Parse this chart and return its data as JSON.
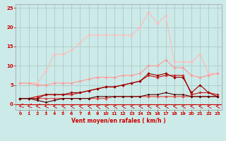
{
  "x": [
    0,
    1,
    2,
    3,
    4,
    5,
    6,
    7,
    8,
    9,
    10,
    11,
    12,
    13,
    14,
    15,
    16,
    17,
    18,
    19,
    20,
    21,
    22,
    23
  ],
  "series": [
    {
      "name": "line_flat_red",
      "color": "#dd4444",
      "linewidth": 0.8,
      "marker": "D",
      "markersize": 1.8,
      "values": [
        1.5,
        1.5,
        1.5,
        1.5,
        1.5,
        1.5,
        1.5,
        1.5,
        1.5,
        1.5,
        1.5,
        2.0,
        2.0,
        2.0,
        2.0,
        2.0,
        2.0,
        2.0,
        2.0,
        2.0,
        2.0,
        2.0,
        2.0,
        2.0
      ]
    },
    {
      "name": "line_mid_red",
      "color": "#cc2222",
      "linewidth": 0.9,
      "marker": "D",
      "markersize": 1.8,
      "values": [
        1.5,
        1.5,
        2.0,
        2.5,
        2.5,
        2.5,
        2.5,
        3.0,
        3.5,
        4.0,
        4.5,
        4.5,
        5.0,
        5.5,
        6.0,
        7.5,
        7.0,
        7.5,
        7.5,
        7.5,
        2.5,
        3.0,
        3.0,
        2.5
      ]
    },
    {
      "name": "line_dark_red",
      "color": "#990000",
      "linewidth": 0.8,
      "marker": "D",
      "markersize": 1.8,
      "values": [
        1.5,
        1.5,
        1.5,
        2.5,
        2.5,
        2.5,
        3.0,
        3.0,
        3.5,
        4.0,
        4.5,
        4.5,
        5.0,
        5.5,
        6.0,
        8.0,
        7.5,
        8.0,
        7.0,
        7.0,
        3.0,
        5.0,
        3.0,
        2.0
      ]
    },
    {
      "name": "line_darkest",
      "color": "#550000",
      "linewidth": 0.8,
      "marker": "D",
      "markersize": 1.5,
      "values": [
        1.5,
        1.5,
        1.0,
        0.5,
        1.0,
        1.5,
        1.5,
        1.5,
        1.5,
        2.0,
        2.0,
        2.0,
        2.0,
        2.0,
        2.0,
        2.5,
        2.5,
        3.0,
        2.5,
        2.5,
        2.0,
        2.0,
        2.0,
        2.0
      ]
    },
    {
      "name": "line_light_pink",
      "color": "#ffbbbb",
      "linewidth": 0.8,
      "marker": "D",
      "markersize": 1.8,
      "values": [
        5.5,
        5.5,
        5.5,
        8.5,
        13.0,
        13.0,
        14.0,
        16.0,
        18.0,
        18.0,
        18.0,
        18.0,
        18.0,
        18.0,
        20.0,
        24.0,
        21.0,
        23.0,
        11.0,
        11.0,
        11.0,
        13.0,
        8.0,
        8.0
      ]
    },
    {
      "name": "line_pink",
      "color": "#ff9999",
      "linewidth": 0.8,
      "marker": "D",
      "markersize": 1.8,
      "values": [
        5.5,
        5.5,
        5.0,
        5.0,
        5.5,
        5.5,
        5.5,
        6.0,
        6.5,
        7.0,
        7.0,
        7.0,
        7.5,
        7.5,
        8.0,
        10.0,
        10.0,
        11.5,
        9.5,
        9.5,
        7.5,
        7.0,
        7.5,
        8.0
      ]
    }
  ],
  "xlabel": "Vent moyen/en rafales ( km/h )",
  "ylim": [
    -1.5,
    26
  ],
  "xlim": [
    -0.5,
    23.5
  ],
  "yticks": [
    0,
    5,
    10,
    15,
    20,
    25
  ],
  "xticks": [
    0,
    1,
    2,
    3,
    4,
    5,
    6,
    7,
    8,
    9,
    10,
    11,
    12,
    13,
    14,
    15,
    16,
    17,
    18,
    19,
    20,
    21,
    22,
    23
  ],
  "bg_color": "#cceae7",
  "grid_color": "#aacccc",
  "tick_color": "#cc0000",
  "xlabel_color": "#cc0000",
  "arrow_color": "#cc0000",
  "hline_color": "#cc0000",
  "arrow_angles": [
    225,
    215,
    200,
    185,
    160,
    150,
    140,
    140,
    135,
    135,
    135,
    140,
    145,
    145,
    150,
    155,
    155,
    155,
    150,
    148,
    155,
    160,
    158,
    155
  ]
}
